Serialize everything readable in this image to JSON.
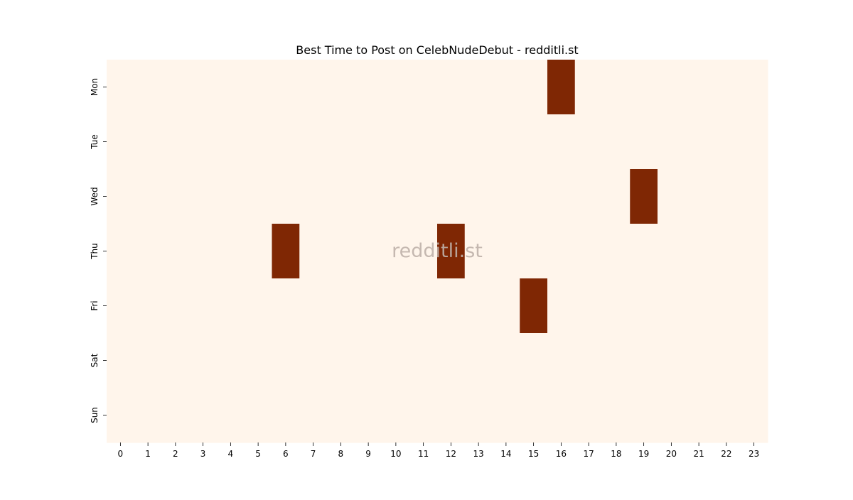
{
  "chart_data": {
    "type": "heatmap",
    "title": "Best Time to Post on CelebNudeDebut - redditli.st",
    "xlabel": "",
    "ylabel": "",
    "x_categories": [
      "0",
      "1",
      "2",
      "3",
      "4",
      "5",
      "6",
      "7",
      "8",
      "9",
      "10",
      "11",
      "12",
      "13",
      "14",
      "15",
      "16",
      "17",
      "18",
      "19",
      "20",
      "21",
      "22",
      "23"
    ],
    "y_categories": [
      "Mon",
      "Tue",
      "Wed",
      "Thu",
      "Fri",
      "Sat",
      "Sun"
    ],
    "values": [
      [
        0,
        0,
        0,
        0,
        0,
        0,
        0,
        0,
        0,
        0,
        0,
        0,
        0,
        0,
        0,
        0,
        1,
        0,
        0,
        0,
        0,
        0,
        0,
        0
      ],
      [
        0,
        0,
        0,
        0,
        0,
        0,
        0,
        0,
        0,
        0,
        0,
        0,
        0,
        0,
        0,
        0,
        0,
        0,
        0,
        0,
        0,
        0,
        0,
        0
      ],
      [
        0,
        0,
        0,
        0,
        0,
        0,
        0,
        0,
        0,
        0,
        0,
        0,
        0,
        0,
        0,
        0,
        0,
        0,
        0,
        1,
        0,
        0,
        0,
        0
      ],
      [
        0,
        0,
        0,
        0,
        0,
        0,
        1,
        0,
        0,
        0,
        0,
        0,
        1,
        0,
        0,
        0,
        0,
        0,
        0,
        0,
        0,
        0,
        0,
        0
      ],
      [
        0,
        0,
        0,
        0,
        0,
        0,
        0,
        0,
        0,
        0,
        0,
        0,
        0,
        0,
        0,
        1,
        0,
        0,
        0,
        0,
        0,
        0,
        0,
        0
      ],
      [
        0,
        0,
        0,
        0,
        0,
        0,
        0,
        0,
        0,
        0,
        0,
        0,
        0,
        0,
        0,
        0,
        0,
        0,
        0,
        0,
        0,
        0,
        0,
        0
      ],
      [
        0,
        0,
        0,
        0,
        0,
        0,
        0,
        0,
        0,
        0,
        0,
        0,
        0,
        0,
        0,
        0,
        0,
        0,
        0,
        0,
        0,
        0,
        0,
        0
      ]
    ],
    "color_low": "#fff5eb",
    "color_high": "#7f2704",
    "grid": false,
    "legend": "none"
  },
  "watermark": "redditli.st"
}
